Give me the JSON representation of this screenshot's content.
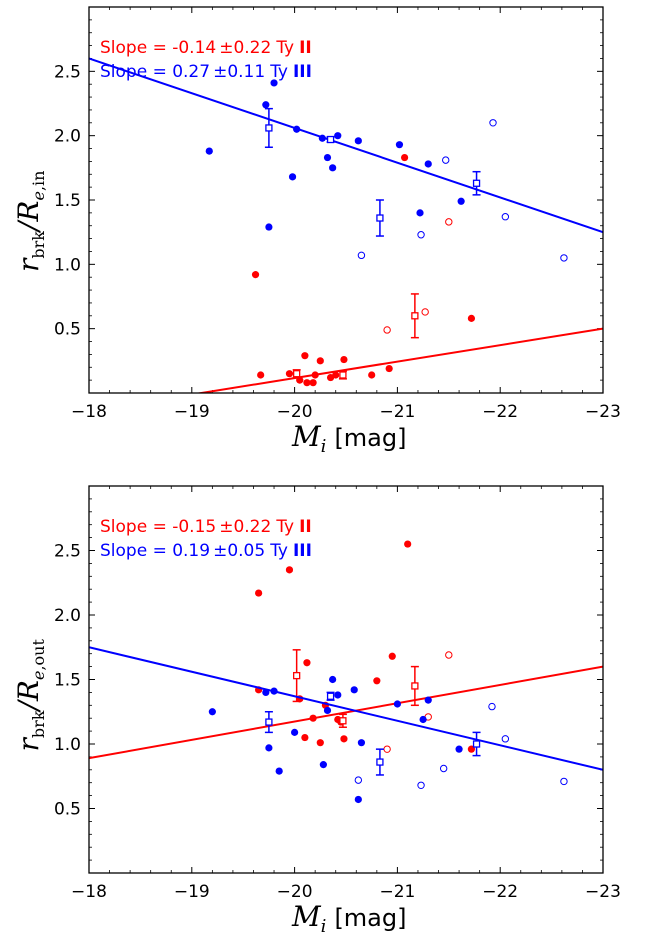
{
  "chart_data": [
    {
      "type": "scatter",
      "x_axis": {
        "label_var": "M",
        "label_sub": "i",
        "label_unit": "[mag]",
        "xlim": [
          -18,
          -23
        ],
        "ticks": [
          -18,
          -19,
          -20,
          -21,
          -22,
          -23
        ],
        "tick_labels": [
          "−18",
          "−19",
          "−20",
          "−21",
          "−22",
          "−23"
        ]
      },
      "y_axis": {
        "label_num": "r",
        "label_num_sub": "brk",
        "label_den": "R",
        "label_den_sub_e": "e",
        "label_den_sub": ",in",
        "ylim": [
          0,
          3.0
        ],
        "ticks": [
          0.5,
          1.0,
          1.5,
          2.0,
          2.5
        ],
        "tick_labels": [
          "0.5",
          "1.0",
          "1.5",
          "2.0",
          "2.5"
        ]
      },
      "annotations": [
        {
          "text": "Slope = -0.14",
          "pm": "±",
          "value": "0.22",
          "suffix": "Ty",
          "roman": "II",
          "color": "#ff0000"
        },
        {
          "text": "Slope = 0.27",
          "pm": "±",
          "value": "0.11",
          "suffix": "Ty",
          "roman": "III",
          "color": "#0000ff"
        }
      ],
      "series": [
        {
          "name": "Ty II",
          "color": "#ff0000",
          "filled": [
            [
              -19.62,
              0.92
            ],
            [
              -19.67,
              0.14
            ],
            [
              -19.95,
              0.15
            ],
            [
              -20.1,
              0.29
            ],
            [
              -20.05,
              0.1
            ],
            [
              -20.12,
              0.08
            ],
            [
              -20.18,
              0.08
            ],
            [
              -20.25,
              0.25
            ],
            [
              -20.2,
              0.14
            ],
            [
              -20.4,
              0.14
            ],
            [
              -20.35,
              0.12
            ],
            [
              -20.48,
              0.26
            ],
            [
              -20.75,
              0.14
            ],
            [
              -20.92,
              0.19
            ],
            [
              -21.07,
              1.83
            ],
            [
              -21.72,
              0.58
            ]
          ],
          "open": [
            [
              -20.9,
              0.49
            ],
            [
              -21.27,
              0.63
            ],
            [
              -21.5,
              1.33
            ]
          ],
          "binned": [
            {
              "x": -20.02,
              "y": 0.15,
              "err": 0.03
            },
            {
              "x": -20.47,
              "y": 0.14,
              "err": 0.03
            },
            {
              "x": -21.17,
              "y": 0.6,
              "err": 0.17
            }
          ],
          "fit": {
            "x": [
              -18.0,
              -23.0
            ],
            "y": [
              -0.14,
              0.5
            ]
          }
        },
        {
          "name": "Ty III",
          "color": "#0000ff",
          "filled": [
            [
              -19.17,
              1.88
            ],
            [
              -19.72,
              2.24
            ],
            [
              -19.8,
              2.41
            ],
            [
              -19.75,
              1.29
            ],
            [
              -19.98,
              1.68
            ],
            [
              -20.02,
              2.05
            ],
            [
              -20.27,
              1.98
            ],
            [
              -20.32,
              1.83
            ],
            [
              -20.37,
              1.75
            ],
            [
              -20.42,
              2.0
            ],
            [
              -20.62,
              1.96
            ],
            [
              -21.02,
              1.93
            ],
            [
              -21.22,
              1.4
            ],
            [
              -21.3,
              1.78
            ],
            [
              -21.62,
              1.49
            ]
          ],
          "open": [
            [
              -20.65,
              1.07
            ],
            [
              -21.23,
              1.23
            ],
            [
              -21.47,
              1.81
            ],
            [
              -21.93,
              2.1
            ],
            [
              -22.05,
              1.37
            ],
            [
              -22.62,
              1.05
            ]
          ],
          "binned": [
            {
              "x": -19.75,
              "y": 2.06,
              "err": 0.15
            },
            {
              "x": -20.35,
              "y": 1.97,
              "err": 0.02
            },
            {
              "x": -20.83,
              "y": 1.36,
              "err": 0.14
            },
            {
              "x": -21.77,
              "y": 1.63,
              "err": 0.09
            }
          ],
          "fit": {
            "x": [
              -18.0,
              -23.0
            ],
            "y": [
              2.6,
              1.25
            ]
          }
        }
      ]
    },
    {
      "type": "scatter",
      "x_axis": {
        "label_var": "M",
        "label_sub": "i",
        "label_unit": "[mag]",
        "xlim": [
          -18,
          -23
        ],
        "ticks": [
          -18,
          -19,
          -20,
          -21,
          -22,
          -23
        ],
        "tick_labels": [
          "−18",
          "−19",
          "−20",
          "−21",
          "−22",
          "−23"
        ]
      },
      "y_axis": {
        "label_num": "r",
        "label_num_sub": "brk",
        "label_den": "R",
        "label_den_sub_e": "e",
        "label_den_sub": ",out",
        "ylim": [
          0,
          3.0
        ],
        "ticks": [
          0.5,
          1.0,
          1.5,
          2.0,
          2.5
        ],
        "tick_labels": [
          "0.5",
          "1.0",
          "1.5",
          "2.0",
          "2.5"
        ]
      },
      "annotations": [
        {
          "text": "Slope = -0.15",
          "pm": "±",
          "value": "0.22",
          "suffix": "Ty",
          "roman": "II",
          "color": "#ff0000"
        },
        {
          "text": "Slope = 0.19",
          "pm": "±",
          "value": "0.05",
          "suffix": "Ty",
          "roman": "III",
          "color": "#0000ff"
        }
      ],
      "series": [
        {
          "name": "Ty II",
          "color": "#ff0000",
          "filled": [
            [
              -19.65,
              2.17
            ],
            [
              -19.65,
              1.42
            ],
            [
              -19.95,
              2.35
            ],
            [
              -20.05,
              1.35
            ],
            [
              -20.12,
              1.63
            ],
            [
              -20.1,
              1.05
            ],
            [
              -20.18,
              1.2
            ],
            [
              -20.25,
              1.01
            ],
            [
              -20.3,
              1.3
            ],
            [
              -20.42,
              1.19
            ],
            [
              -20.45,
              1.17
            ],
            [
              -20.48,
              1.04
            ],
            [
              -20.8,
              1.49
            ],
            [
              -20.95,
              1.68
            ],
            [
              -21.1,
              2.55
            ],
            [
              -21.72,
              0.96
            ]
          ],
          "open": [
            [
              -20.9,
              0.96
            ],
            [
              -21.3,
              1.21
            ],
            [
              -21.5,
              1.69
            ]
          ],
          "binned": [
            {
              "x": -20.02,
              "y": 1.53,
              "err": 0.2
            },
            {
              "x": -20.47,
              "y": 1.18,
              "err": 0.05
            },
            {
              "x": -21.17,
              "y": 1.45,
              "err": 0.15
            }
          ],
          "fit": {
            "x": [
              -18.0,
              -23.0
            ],
            "y": [
              0.89,
              1.6
            ]
          }
        },
        {
          "name": "Ty III",
          "color": "#0000ff",
          "filled": [
            [
              -19.2,
              1.25
            ],
            [
              -19.72,
              1.4
            ],
            [
              -19.8,
              1.41
            ],
            [
              -19.75,
              0.97
            ],
            [
              -19.85,
              0.79
            ],
            [
              -20.0,
              1.09
            ],
            [
              -20.28,
              0.84
            ],
            [
              -20.32,
              1.26
            ],
            [
              -20.37,
              1.5
            ],
            [
              -20.42,
              1.38
            ],
            [
              -20.58,
              1.42
            ],
            [
              -20.62,
              0.57
            ],
            [
              -20.65,
              1.01
            ],
            [
              -21.0,
              1.31
            ],
            [
              -21.25,
              1.19
            ],
            [
              -21.3,
              1.34
            ],
            [
              -21.6,
              0.96
            ]
          ],
          "open": [
            [
              -20.62,
              0.72
            ],
            [
              -21.23,
              0.68
            ],
            [
              -21.45,
              0.81
            ],
            [
              -21.92,
              1.29
            ],
            [
              -22.05,
              1.04
            ],
            [
              -22.62,
              0.71
            ]
          ],
          "binned": [
            {
              "x": -19.75,
              "y": 1.17,
              "err": 0.08
            },
            {
              "x": -20.35,
              "y": 1.37,
              "err": 0.03
            },
            {
              "x": -20.83,
              "y": 0.86,
              "err": 0.1
            },
            {
              "x": -21.77,
              "y": 1.0,
              "err": 0.09
            }
          ],
          "fit": {
            "x": [
              -18.0,
              -23.0
            ],
            "y": [
              1.75,
              0.8
            ]
          }
        }
      ]
    }
  ]
}
